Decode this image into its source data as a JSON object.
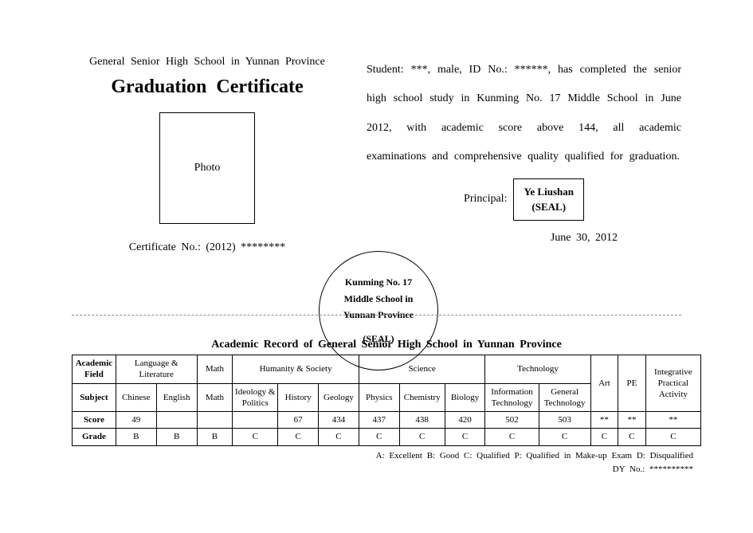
{
  "header": {
    "province_line": "General Senior High School in Yunnan Province",
    "title": "Graduation Certificate"
  },
  "photo_label": "Photo",
  "certificate_no": "Certificate No.: (2012) ********",
  "paragraph": "Student: ***, male, ID No.: ******,   has completed the senior high school study in Kunming No. 17 Middle School in June 2012, with academic score above 144, all academic examinations and comprehensive quality qualified for graduation.",
  "principal": {
    "label": "Principal:",
    "name": "Ye Liushan",
    "seal": "(SEAL)"
  },
  "issue_date": "June 30, 2012",
  "school_seal": {
    "line1": "Kunming No. 17",
    "line2": "Middle School in",
    "line3": "Yunnan Province",
    "seal": "(SEAL)"
  },
  "record_title": "Academic Record of General Senior High School in Yunnan Province",
  "table": {
    "row_labels": {
      "field": "Academic Field",
      "subject": "Subject",
      "score": "Score",
      "grade": "Grade"
    },
    "fields": [
      {
        "name": "Language & Literature",
        "span": 2
      },
      {
        "name": "Math",
        "span": 1
      },
      {
        "name": "Humanity & Society",
        "span": 3
      },
      {
        "name": "Science",
        "span": 3
      },
      {
        "name": "Technology",
        "span": 2
      }
    ],
    "tail_cols": [
      "Art",
      "PE",
      "Integrative Practical Activity"
    ],
    "subjects": [
      "Chinese",
      "English",
      "Math",
      "Ideology & Politics",
      "History",
      "Geology",
      "Physics",
      "Chemistry",
      "Biology",
      "Information Technology",
      "General Technology"
    ],
    "scores": [
      "49",
      "",
      "",
      "",
      "67",
      "434",
      "437",
      "438",
      "420",
      "502",
      "503",
      "**",
      "**",
      "**"
    ],
    "grades": [
      "B",
      "B",
      "B",
      "C",
      "C",
      "C",
      "C",
      "C",
      "C",
      "C",
      "C",
      "C",
      "C",
      "C"
    ]
  },
  "legend": {
    "line1": "A: Excellent    B: Good    C: Qualified    P: Qualified in Make-up Exam    D: Disqualified",
    "line2": "DY No.: **********"
  },
  "colors": {
    "text": "#000000",
    "background": "#ffffff",
    "divider": "#888888"
  }
}
